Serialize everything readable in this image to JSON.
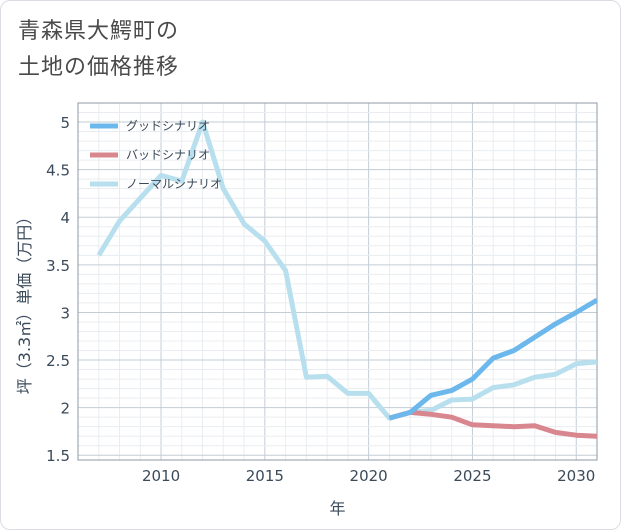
{
  "title_line1": "青森県大鰐町の",
  "title_line2": "土地の価格推移",
  "chart_data": {
    "type": "line",
    "xlabel": "年",
    "ylabel": "坪（3.3㎡）単価（万円）",
    "xlim": [
      2006,
      2031
    ],
    "ylim": [
      1.45,
      5.2
    ],
    "xticks": [
      2010,
      2015,
      2020,
      2025,
      2030
    ],
    "yticks": [
      1.5,
      2,
      2.5,
      3,
      3.5,
      4,
      4.5,
      5
    ],
    "ytick_labels": [
      "1.5",
      "2",
      "2.5",
      "3",
      "3.5",
      "4",
      "4.5",
      "5"
    ],
    "grid": true,
    "legend_position": "top-left",
    "series": [
      {
        "name": "グッドシナリオ",
        "color": "#6cb8ec",
        "x": [
          2021,
          2022,
          2023,
          2024,
          2025,
          2026,
          2027,
          2028,
          2029,
          2030,
          2031
        ],
        "y": [
          1.89,
          1.95,
          2.13,
          2.18,
          2.3,
          2.52,
          2.6,
          2.74,
          2.88,
          3.0,
          3.13
        ]
      },
      {
        "name": "バッドシナリオ",
        "color": "#d9878f",
        "x": [
          2021,
          2022,
          2023,
          2024,
          2025,
          2026,
          2027,
          2028,
          2029,
          2030,
          2031
        ],
        "y": [
          1.89,
          1.95,
          1.93,
          1.9,
          1.82,
          1.81,
          1.8,
          1.81,
          1.74,
          1.71,
          1.7
        ]
      },
      {
        "name": "ノーマルシナリオ",
        "color": "#b8dfee",
        "x": [
          2007,
          2008,
          2009,
          2010,
          2011,
          2012,
          2013,
          2014,
          2015,
          2016,
          2017,
          2018,
          2019,
          2020,
          2021,
          2022,
          2023,
          2024,
          2025,
          2026,
          2027,
          2028,
          2029,
          2030,
          2031
        ],
        "y": [
          3.6,
          3.96,
          4.2,
          4.44,
          4.38,
          5.0,
          4.3,
          3.93,
          3.75,
          3.44,
          2.32,
          2.33,
          2.15,
          2.15,
          1.89,
          1.95,
          1.97,
          2.08,
          2.09,
          2.21,
          2.24,
          2.32,
          2.35,
          2.46,
          2.48
        ]
      }
    ]
  }
}
